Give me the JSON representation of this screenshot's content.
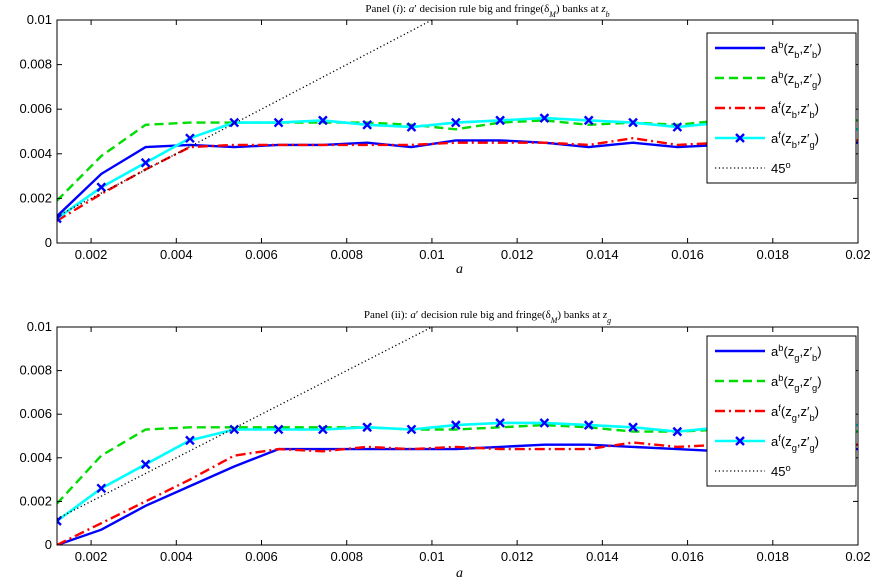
{
  "chart_data": [
    {
      "type": "line",
      "title": "Panel (i): a′ decision rule big and fringe(δ_M) banks at z_b",
      "xlabel": "a",
      "ylabel": "",
      "xlim": [
        0.0012,
        0.02
      ],
      "ylim": [
        0,
        0.01
      ],
      "xticks": [
        "0.002",
        "0.004",
        "0.006",
        "0.008",
        "0.01",
        "0.012",
        "0.014",
        "0.016",
        "0.018",
        "0.02"
      ],
      "yticks": [
        "0",
        "0.002",
        "0.004",
        "0.006",
        "0.008",
        "0.01"
      ],
      "legend_position": "top-right",
      "series": [
        {
          "name": "a^b(z_b,z′_b)",
          "color": "#0000ff",
          "style": "solid",
          "marker": "none",
          "x": [
            0.0012,
            0.00224,
            0.00328,
            0.00432,
            0.00536,
            0.0064,
            0.00744,
            0.00848,
            0.00952,
            0.01056,
            0.0116,
            0.01264,
            0.01368,
            0.01472,
            0.01576,
            0.0168,
            0.02
          ],
          "y": [
            0.0012,
            0.0031,
            0.0043,
            0.0044,
            0.0043,
            0.0044,
            0.0044,
            0.0045,
            0.0043,
            0.0046,
            0.0046,
            0.0045,
            0.0043,
            0.0045,
            0.0043,
            0.0044,
            0.0045
          ]
        },
        {
          "name": "a^b(z_b,z′_g)",
          "color": "#00dd00",
          "style": "dashed",
          "marker": "none",
          "x": [
            0.0012,
            0.00224,
            0.00328,
            0.00432,
            0.00536,
            0.0064,
            0.00744,
            0.00848,
            0.00952,
            0.01056,
            0.0116,
            0.01264,
            0.01368,
            0.01472,
            0.01576,
            0.0168,
            0.02
          ],
          "y": [
            0.0019,
            0.0039,
            0.0053,
            0.0054,
            0.0054,
            0.0054,
            0.0054,
            0.0054,
            0.0053,
            0.0051,
            0.0054,
            0.0055,
            0.0053,
            0.0054,
            0.0053,
            0.0055,
            0.0055
          ]
        },
        {
          "name": "a^f(z_b,z′_b)",
          "color": "#ff0000",
          "style": "dashdot",
          "marker": "none",
          "x": [
            0.0012,
            0.00224,
            0.00328,
            0.00432,
            0.00536,
            0.0064,
            0.00744,
            0.00848,
            0.00952,
            0.01056,
            0.0116,
            0.01264,
            0.01368,
            0.01472,
            0.01576,
            0.0168,
            0.02
          ],
          "y": [
            0.001,
            0.0022,
            0.0033,
            0.0043,
            0.0044,
            0.0044,
            0.0044,
            0.0044,
            0.0044,
            0.0045,
            0.0045,
            0.0045,
            0.0044,
            0.0047,
            0.0044,
            0.0045,
            0.0046
          ]
        },
        {
          "name": "a^f(z_b,z′_g)",
          "color": "#00ffff",
          "style": "solid",
          "marker": "x",
          "x": [
            0.0012,
            0.00224,
            0.00328,
            0.00432,
            0.00536,
            0.0064,
            0.00744,
            0.00848,
            0.00952,
            0.01056,
            0.0116,
            0.01264,
            0.01368,
            0.01472,
            0.01576,
            0.0168,
            0.02
          ],
          "y": [
            0.0011,
            0.0025,
            0.0036,
            0.0047,
            0.0054,
            0.0054,
            0.0055,
            0.0053,
            0.0052,
            0.0054,
            0.0055,
            0.0056,
            0.0055,
            0.0054,
            0.0052,
            0.0054,
            0.0051
          ]
        },
        {
          "name": "45°",
          "color": "#000000",
          "style": "dotted",
          "marker": "none",
          "x": [
            0.0012,
            0.0103
          ],
          "y": [
            0.0012,
            0.0103
          ]
        }
      ]
    },
    {
      "type": "line",
      "title": "Panel (ii): a′ decision rule big and fringe(δ_M) banks at z_g",
      "xlabel": "a",
      "ylabel": "",
      "xlim": [
        0.0012,
        0.02
      ],
      "ylim": [
        0,
        0.01
      ],
      "xticks": [
        "0.002",
        "0.004",
        "0.006",
        "0.008",
        "0.01",
        "0.012",
        "0.014",
        "0.016",
        "0.018",
        "0.02"
      ],
      "yticks": [
        "0",
        "0.002",
        "0.004",
        "0.006",
        "0.008",
        "0.01"
      ],
      "legend_position": "top-right",
      "series": [
        {
          "name": "a^b(z_g,z′_b)",
          "color": "#0000ff",
          "style": "solid",
          "marker": "none",
          "x": [
            0.0012,
            0.00224,
            0.00328,
            0.00432,
            0.00536,
            0.0064,
            0.00744,
            0.00848,
            0.00952,
            0.01056,
            0.0116,
            0.01264,
            0.01368,
            0.01472,
            0.01576,
            0.0168,
            0.02
          ],
          "y": [
            0,
            0.0007,
            0.0018,
            0.0027,
            0.0036,
            0.0044,
            0.0044,
            0.0044,
            0.0044,
            0.0044,
            0.0045,
            0.0046,
            0.0046,
            0.0045,
            0.0044,
            0.0043,
            0.0044
          ]
        },
        {
          "name": "a^b(z_g,z′_g)",
          "color": "#00dd00",
          "style": "dashed",
          "marker": "none",
          "x": [
            0.0012,
            0.00224,
            0.00328,
            0.00432,
            0.00536,
            0.0064,
            0.00744,
            0.00848,
            0.00952,
            0.01056,
            0.0116,
            0.01264,
            0.01368,
            0.01472,
            0.01576,
            0.0168,
            0.02
          ],
          "y": [
            0.0019,
            0.0041,
            0.0053,
            0.0054,
            0.0054,
            0.0054,
            0.0054,
            0.0054,
            0.0053,
            0.0053,
            0.0054,
            0.0055,
            0.0054,
            0.0052,
            0.0052,
            0.0053,
            0.0052
          ]
        },
        {
          "name": "a^f(z_g,z′_b)",
          "color": "#ff0000",
          "style": "dashdot",
          "marker": "none",
          "x": [
            0.0012,
            0.00224,
            0.00328,
            0.00432,
            0.00536,
            0.0064,
            0.00744,
            0.00848,
            0.00952,
            0.01056,
            0.0116,
            0.01264,
            0.01368,
            0.01472,
            0.01576,
            0.0168,
            0.02
          ],
          "y": [
            0,
            0.001,
            0.002,
            0.003,
            0.0041,
            0.0044,
            0.0043,
            0.0045,
            0.0044,
            0.0045,
            0.0044,
            0.0044,
            0.0044,
            0.0047,
            0.0045,
            0.0046,
            0.0046
          ]
        },
        {
          "name": "a^f(z_g,z′_g)",
          "color": "#00ffff",
          "style": "solid",
          "marker": "x",
          "x": [
            0.0012,
            0.00224,
            0.00328,
            0.00432,
            0.00536,
            0.0064,
            0.00744,
            0.00848,
            0.00952,
            0.01056,
            0.0116,
            0.01264,
            0.01368,
            0.01472,
            0.01576,
            0.0168,
            0.02
          ],
          "y": [
            0.0011,
            0.0026,
            0.0037,
            0.0048,
            0.0053,
            0.0053,
            0.0053,
            0.0054,
            0.0053,
            0.0055,
            0.0056,
            0.0056,
            0.0055,
            0.0054,
            0.0052,
            0.0054,
            0.0055
          ]
        },
        {
          "name": "45°",
          "color": "#000000",
          "style": "dotted",
          "marker": "none",
          "x": [
            0.0012,
            0.0103
          ],
          "y": [
            0.0012,
            0.0103
          ]
        }
      ]
    }
  ]
}
